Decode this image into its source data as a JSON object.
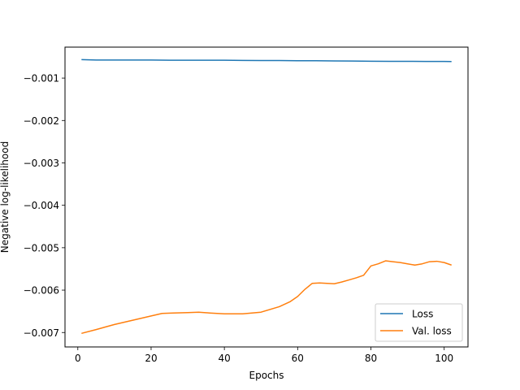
{
  "chart_data": {
    "type": "line",
    "title": "",
    "xlabel": "Epochs",
    "ylabel": "Negative log-likelihood",
    "xlim": [
      -3.5,
      106.5
    ],
    "ylim": [
      -0.00734,
      -0.00027
    ],
    "xticks": [
      0,
      20,
      40,
      60,
      80,
      100
    ],
    "xtick_labels": [
      "0",
      "20",
      "40",
      "60",
      "80",
      "100"
    ],
    "yticks": [
      -0.007,
      -0.006,
      -0.005,
      -0.004,
      -0.003,
      -0.002,
      -0.001
    ],
    "ytick_labels": [
      "−0.007",
      "−0.006",
      "−0.005",
      "−0.004",
      "−0.003",
      "−0.002",
      "−0.001"
    ],
    "grid": false,
    "legend": {
      "position": "lower-right"
    },
    "series": [
      {
        "name": "Loss",
        "color": "#1f77b4",
        "x": [
          1,
          3,
          5,
          10,
          15,
          20,
          25,
          30,
          35,
          40,
          45,
          50,
          55,
          60,
          65,
          70,
          75,
          80,
          85,
          90,
          95,
          100,
          102
        ],
        "y": [
          -0.000565,
          -0.00057,
          -0.000575,
          -0.000575,
          -0.000575,
          -0.000575,
          -0.000578,
          -0.000578,
          -0.00058,
          -0.00058,
          -0.000583,
          -0.000585,
          -0.000587,
          -0.00059,
          -0.000592,
          -0.000595,
          -0.000598,
          -0.000603,
          -0.000605,
          -0.000605,
          -0.000607,
          -0.000608,
          -0.00061
        ]
      },
      {
        "name": "Val. loss",
        "color": "#ff7f0e",
        "x": [
          1,
          5,
          10,
          15,
          20,
          23,
          26,
          30,
          33,
          36,
          40,
          45,
          50,
          55,
          58,
          60,
          62,
          64,
          66,
          68,
          70,
          72,
          74,
          76,
          78,
          80,
          82,
          84,
          86,
          88,
          90,
          92,
          94,
          96,
          98,
          100,
          102
        ],
        "y": [
          -0.00702,
          -0.00693,
          -0.00681,
          -0.00671,
          -0.00661,
          -0.00655,
          -0.00654,
          -0.00653,
          -0.00652,
          -0.00654,
          -0.00656,
          -0.00656,
          -0.00652,
          -0.00639,
          -0.00627,
          -0.00615,
          -0.00598,
          -0.00584,
          -0.00583,
          -0.00584,
          -0.00585,
          -0.00581,
          -0.00576,
          -0.00571,
          -0.00565,
          -0.00543,
          -0.00538,
          -0.00531,
          -0.00533,
          -0.00535,
          -0.00538,
          -0.00541,
          -0.00538,
          -0.00533,
          -0.00532,
          -0.00535,
          -0.00541
        ]
      }
    ]
  }
}
